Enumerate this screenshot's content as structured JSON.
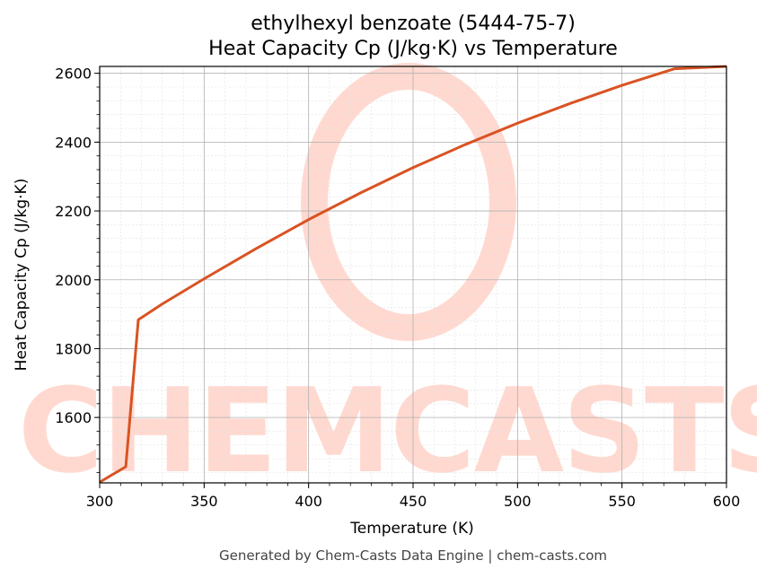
{
  "title_line1": "ethylhexyl benzoate (5444-75-7)",
  "title_line2": "Heat Capacity Cp (J/kg·K) vs Temperature",
  "footer": "Generated by Chem-Casts Data Engine | chem-casts.com",
  "watermark_text": "CHEMCASTS",
  "colors": {
    "line": "#d95323",
    "watermark": "#ffd9d0",
    "grid": "#b0b0b0"
  },
  "chart_data": {
    "type": "line",
    "title": "ethylhexyl benzoate (5444-75-7) Heat Capacity Cp (J/kg·K) vs Temperature",
    "xlabel": "Temperature (K)",
    "ylabel": "Heat Capacity Cp (J/kg·K)",
    "xlim": [
      300,
      600
    ],
    "ylim": [
      1410,
      2620
    ],
    "xticks": [
      300,
      350,
      400,
      450,
      500,
      550,
      600
    ],
    "yticks": [
      1600,
      1800,
      2000,
      2200,
      2400,
      2600
    ],
    "grid": true,
    "series": [
      {
        "x": [
          300,
          312.5,
          318.5,
          330,
          350,
          375,
          400,
          425,
          450,
          475,
          500,
          525,
          550,
          575,
          600
        ],
        "y": [
          1412,
          1457,
          1884,
          1930,
          2003,
          2091,
          2175,
          2253,
          2326,
          2393,
          2455,
          2512,
          2565,
          2613,
          2620
        ]
      }
    ]
  }
}
